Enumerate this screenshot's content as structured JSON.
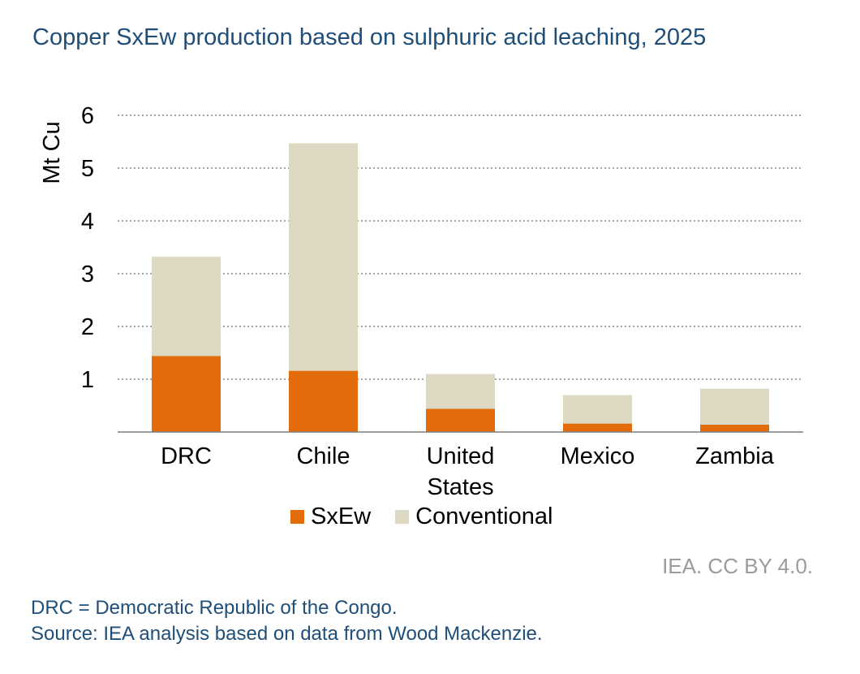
{
  "chart_data": {
    "type": "bar",
    "stacked": true,
    "title": "Copper SxEw production based on sulphuric acid leaching, 2025",
    "ylabel": "Mt Cu",
    "xlabel": "",
    "ylim": [
      0,
      6
    ],
    "yticks": [
      "1",
      "2",
      "3",
      "4",
      "5",
      "6"
    ],
    "grid": true,
    "legend_position": "bottom",
    "categories": [
      [
        "DRC"
      ],
      [
        "Chile"
      ],
      [
        "United",
        "States"
      ],
      [
        "Mexico"
      ],
      [
        "Zambia"
      ]
    ],
    "series": [
      {
        "name": "SxEw",
        "color": "#e36c0a",
        "values": [
          1.44,
          1.16,
          0.44,
          0.16,
          0.14
        ]
      },
      {
        "name": "Conventional",
        "color": "#ddd9c3",
        "values": [
          1.88,
          4.31,
          0.66,
          0.54,
          0.68
        ]
      }
    ]
  },
  "legend": {
    "items": [
      {
        "label": "SxEw",
        "color": "#e36c0a"
      },
      {
        "label": "Conventional",
        "color": "#ddd9c3"
      }
    ]
  },
  "footer": {
    "credit": "IEA. CC BY 4.0.",
    "note": "DRC = Democratic Republic of the Congo.",
    "source": "Source: IEA analysis based on data from Wood Mackenzie."
  }
}
